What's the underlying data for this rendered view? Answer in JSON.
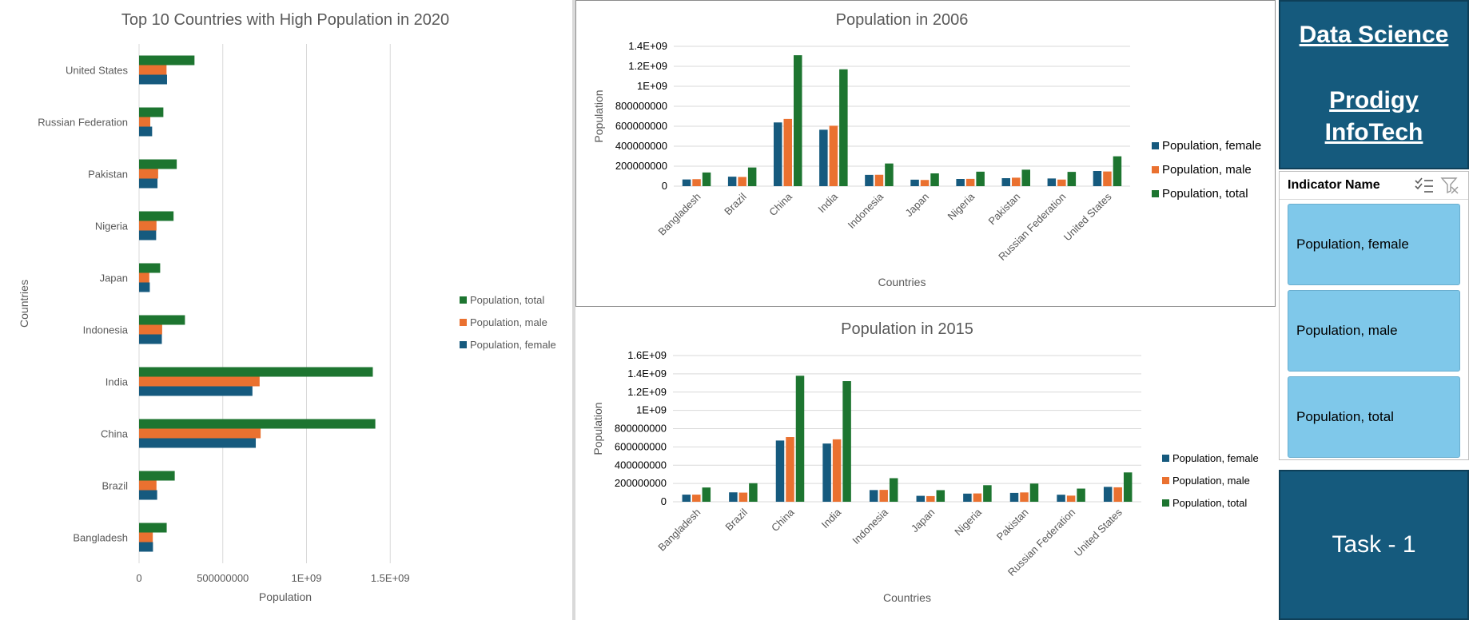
{
  "colors": {
    "female": "#165a7e",
    "male": "#ea7130",
    "total": "#1d7530",
    "grid": "#d9d9d9",
    "panel": "#155a7d",
    "slicer_item": "#7fc8ea"
  },
  "chart_data": [
    {
      "id": "pop2020",
      "type": "bar",
      "orientation": "horizontal",
      "title": "Top 10 Countries with High Population in 2020",
      "xlabel": "Population",
      "ylabel": "Countries",
      "categories": [
        "Bangladesh",
        "Brazil",
        "China",
        "India",
        "Indonesia",
        "Japan",
        "Nigeria",
        "Pakistan",
        "Russian Federation",
        "United States"
      ],
      "series": [
        {
          "name": "Population, female",
          "values": [
            83000000,
            108000000,
            697000000,
            677000000,
            136000000,
            64000000,
            102000000,
            110000000,
            78000000,
            167000000
          ]
        },
        {
          "name": "Population, male",
          "values": [
            82000000,
            104000000,
            726000000,
            720000000,
            138000000,
            61000000,
            104000000,
            114000000,
            67000000,
            164000000
          ]
        },
        {
          "name": "Population, total",
          "values": [
            165000000,
            213000000,
            1411000000,
            1396000000,
            274000000,
            126000000,
            206000000,
            225000000,
            145000000,
            331000000
          ]
        }
      ],
      "xlim": [
        0,
        2000000000
      ],
      "ticks": [
        {
          "v": 0,
          "label": "0"
        },
        {
          "v": 500000000,
          "label": "500000000"
        },
        {
          "v": 1000000000,
          "label": "1E+09"
        },
        {
          "v": 1500000000,
          "label": "1.5E+09"
        }
      ],
      "legend": "right"
    },
    {
      "id": "pop2006",
      "type": "bar",
      "title": "Population in 2006",
      "xlabel": "Countries",
      "ylabel": "Population",
      "categories": [
        "Bangladesh",
        "Brazil",
        "China",
        "India",
        "Indonesia",
        "Japan",
        "Nigeria",
        "Pakistan",
        "Russian Federation",
        "United States"
      ],
      "series": [
        {
          "name": "Population, female",
          "values": [
            67000000,
            95000000,
            638000000,
            565000000,
            113000000,
            65000000,
            72000000,
            80000000,
            77000000,
            152000000
          ]
        },
        {
          "name": "Population, male",
          "values": [
            70000000,
            92000000,
            673000000,
            605000000,
            114000000,
            62000000,
            73000000,
            85000000,
            66000000,
            147000000
          ]
        },
        {
          "name": "Population, total",
          "values": [
            137000000,
            187000000,
            1311000000,
            1170000000,
            227000000,
            128000000,
            145000000,
            165000000,
            143000000,
            299000000
          ]
        }
      ],
      "ylim": [
        0,
        1400000000
      ],
      "ticks": [
        {
          "v": 0,
          "label": "0"
        },
        {
          "v": 200000000,
          "label": "200000000"
        },
        {
          "v": 400000000,
          "label": "400000000"
        },
        {
          "v": 600000000,
          "label": "600000000"
        },
        {
          "v": 800000000,
          "label": "800000000"
        },
        {
          "v": 1000000000,
          "label": "1E+09"
        },
        {
          "v": 1200000000,
          "label": "1.2E+09"
        },
        {
          "v": 1400000000,
          "label": "1.4E+09"
        }
      ],
      "legend": "right"
    },
    {
      "id": "pop2015",
      "type": "bar",
      "title": "Population in 2015",
      "xlabel": "Countries",
      "ylabel": "Population",
      "categories": [
        "Bangladesh",
        "Brazil",
        "China",
        "India",
        "Indonesia",
        "Japan",
        "Nigeria",
        "Pakistan",
        "Russian Federation",
        "United States"
      ],
      "series": [
        {
          "name": "Population, female",
          "values": [
            78000000,
            103000000,
            670000000,
            637000000,
            128000000,
            65000000,
            89000000,
            97000000,
            77000000,
            163000000
          ]
        },
        {
          "name": "Population, male",
          "values": [
            78000000,
            100000000,
            708000000,
            683000000,
            130000000,
            62000000,
            91000000,
            102000000,
            67000000,
            158000000
          ]
        },
        {
          "name": "Population, total",
          "values": [
            156000000,
            203000000,
            1379000000,
            1320000000,
            258000000,
            127000000,
            181000000,
            199000000,
            144000000,
            321000000
          ]
        }
      ],
      "ylim": [
        0,
        1600000000
      ],
      "ticks": [
        {
          "v": 0,
          "label": "0"
        },
        {
          "v": 200000000,
          "label": "200000000"
        },
        {
          "v": 400000000,
          "label": "400000000"
        },
        {
          "v": 600000000,
          "label": "600000000"
        },
        {
          "v": 800000000,
          "label": "800000000"
        },
        {
          "v": 1000000000,
          "label": "1E+09"
        },
        {
          "v": 1200000000,
          "label": "1.2E+09"
        },
        {
          "v": 1400000000,
          "label": "1.4E+09"
        },
        {
          "v": 1600000000,
          "label": "1.6E+09"
        }
      ],
      "legend": "right"
    }
  ],
  "dashboard": {
    "title_line1": "Data Science",
    "title_line2": "Prodigy",
    "title_line3": "InfoTech",
    "task_label": "Task - 1"
  },
  "slicer": {
    "header": "Indicator Name",
    "multi_select_icon": "multi-select-icon",
    "clear_filter_icon": "clear-filter-icon",
    "items": [
      {
        "label": "Population, female"
      },
      {
        "label": "Population, male"
      },
      {
        "label": "Population, total"
      }
    ]
  }
}
